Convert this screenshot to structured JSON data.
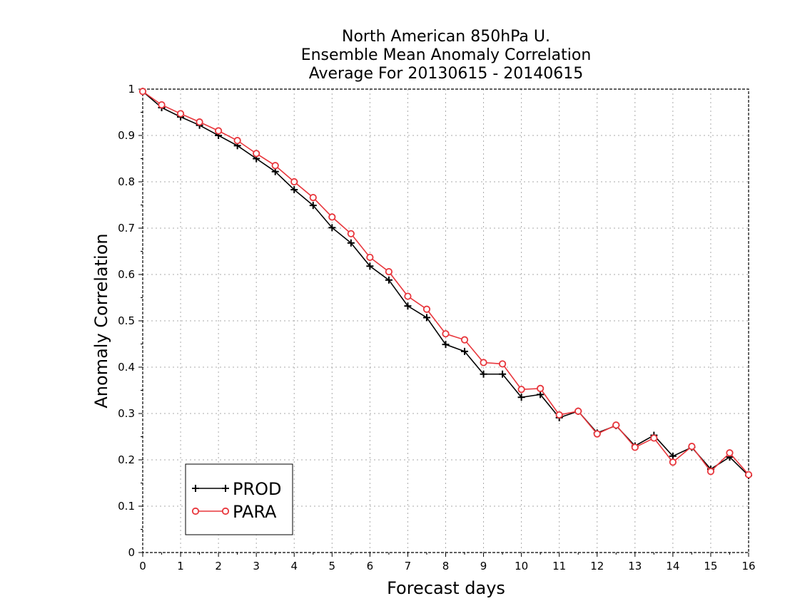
{
  "chart_data": {
    "type": "line",
    "title": [
      "North American 850hPa U.",
      "Ensemble Mean Anomaly Correlation",
      "Average For 20130615 - 20140615"
    ],
    "xlabel": "Forecast days",
    "ylabel": "Anomaly Correlation",
    "xlim": [
      0,
      16
    ],
    "ylim": [
      0,
      1
    ],
    "x_ticks": [
      0,
      1,
      2,
      3,
      4,
      5,
      6,
      7,
      8,
      9,
      10,
      11,
      12,
      13,
      14,
      15,
      16
    ],
    "y_ticks": [
      0,
      0.1,
      0.2,
      0.3,
      0.4,
      0.5,
      0.6,
      0.7,
      0.8,
      0.9,
      1
    ],
    "y_tick_labels": [
      "0",
      "0.1",
      "0.2",
      "0.3",
      "0.4",
      "0.5",
      "0.6",
      "0.7",
      "0.8",
      "0.9",
      "1"
    ],
    "grid": true,
    "legend_position": "bottom-left",
    "x": [
      0,
      0.5,
      1,
      1.5,
      2,
      2.5,
      3,
      3.5,
      4,
      4.5,
      5,
      5.5,
      6,
      6.5,
      7,
      7.5,
      8,
      8.5,
      9,
      9.5,
      10,
      10.5,
      11,
      11.5,
      12,
      12.5,
      13,
      13.5,
      14,
      14.5,
      15,
      15.5,
      16
    ],
    "series": [
      {
        "name": "PROD",
        "color": "#000000",
        "marker": "plus",
        "values": [
          0.995,
          0.96,
          0.94,
          0.922,
          0.9,
          0.878,
          0.85,
          0.822,
          0.783,
          0.749,
          0.701,
          0.668,
          0.618,
          0.588,
          0.532,
          0.507,
          0.449,
          0.434,
          0.385,
          0.385,
          0.335,
          0.341,
          0.291,
          0.305,
          0.258,
          0.274,
          0.23,
          0.253,
          0.208,
          0.227,
          0.18,
          0.206,
          0.166
        ]
      },
      {
        "name": "PARA",
        "color": "#e8363c",
        "marker": "circle",
        "values": [
          0.995,
          0.966,
          0.947,
          0.929,
          0.91,
          0.889,
          0.861,
          0.835,
          0.8,
          0.766,
          0.724,
          0.688,
          0.637,
          0.606,
          0.553,
          0.525,
          0.472,
          0.459,
          0.41,
          0.407,
          0.352,
          0.354,
          0.297,
          0.305,
          0.256,
          0.275,
          0.227,
          0.247,
          0.195,
          0.229,
          0.175,
          0.215,
          0.168
        ]
      }
    ]
  }
}
